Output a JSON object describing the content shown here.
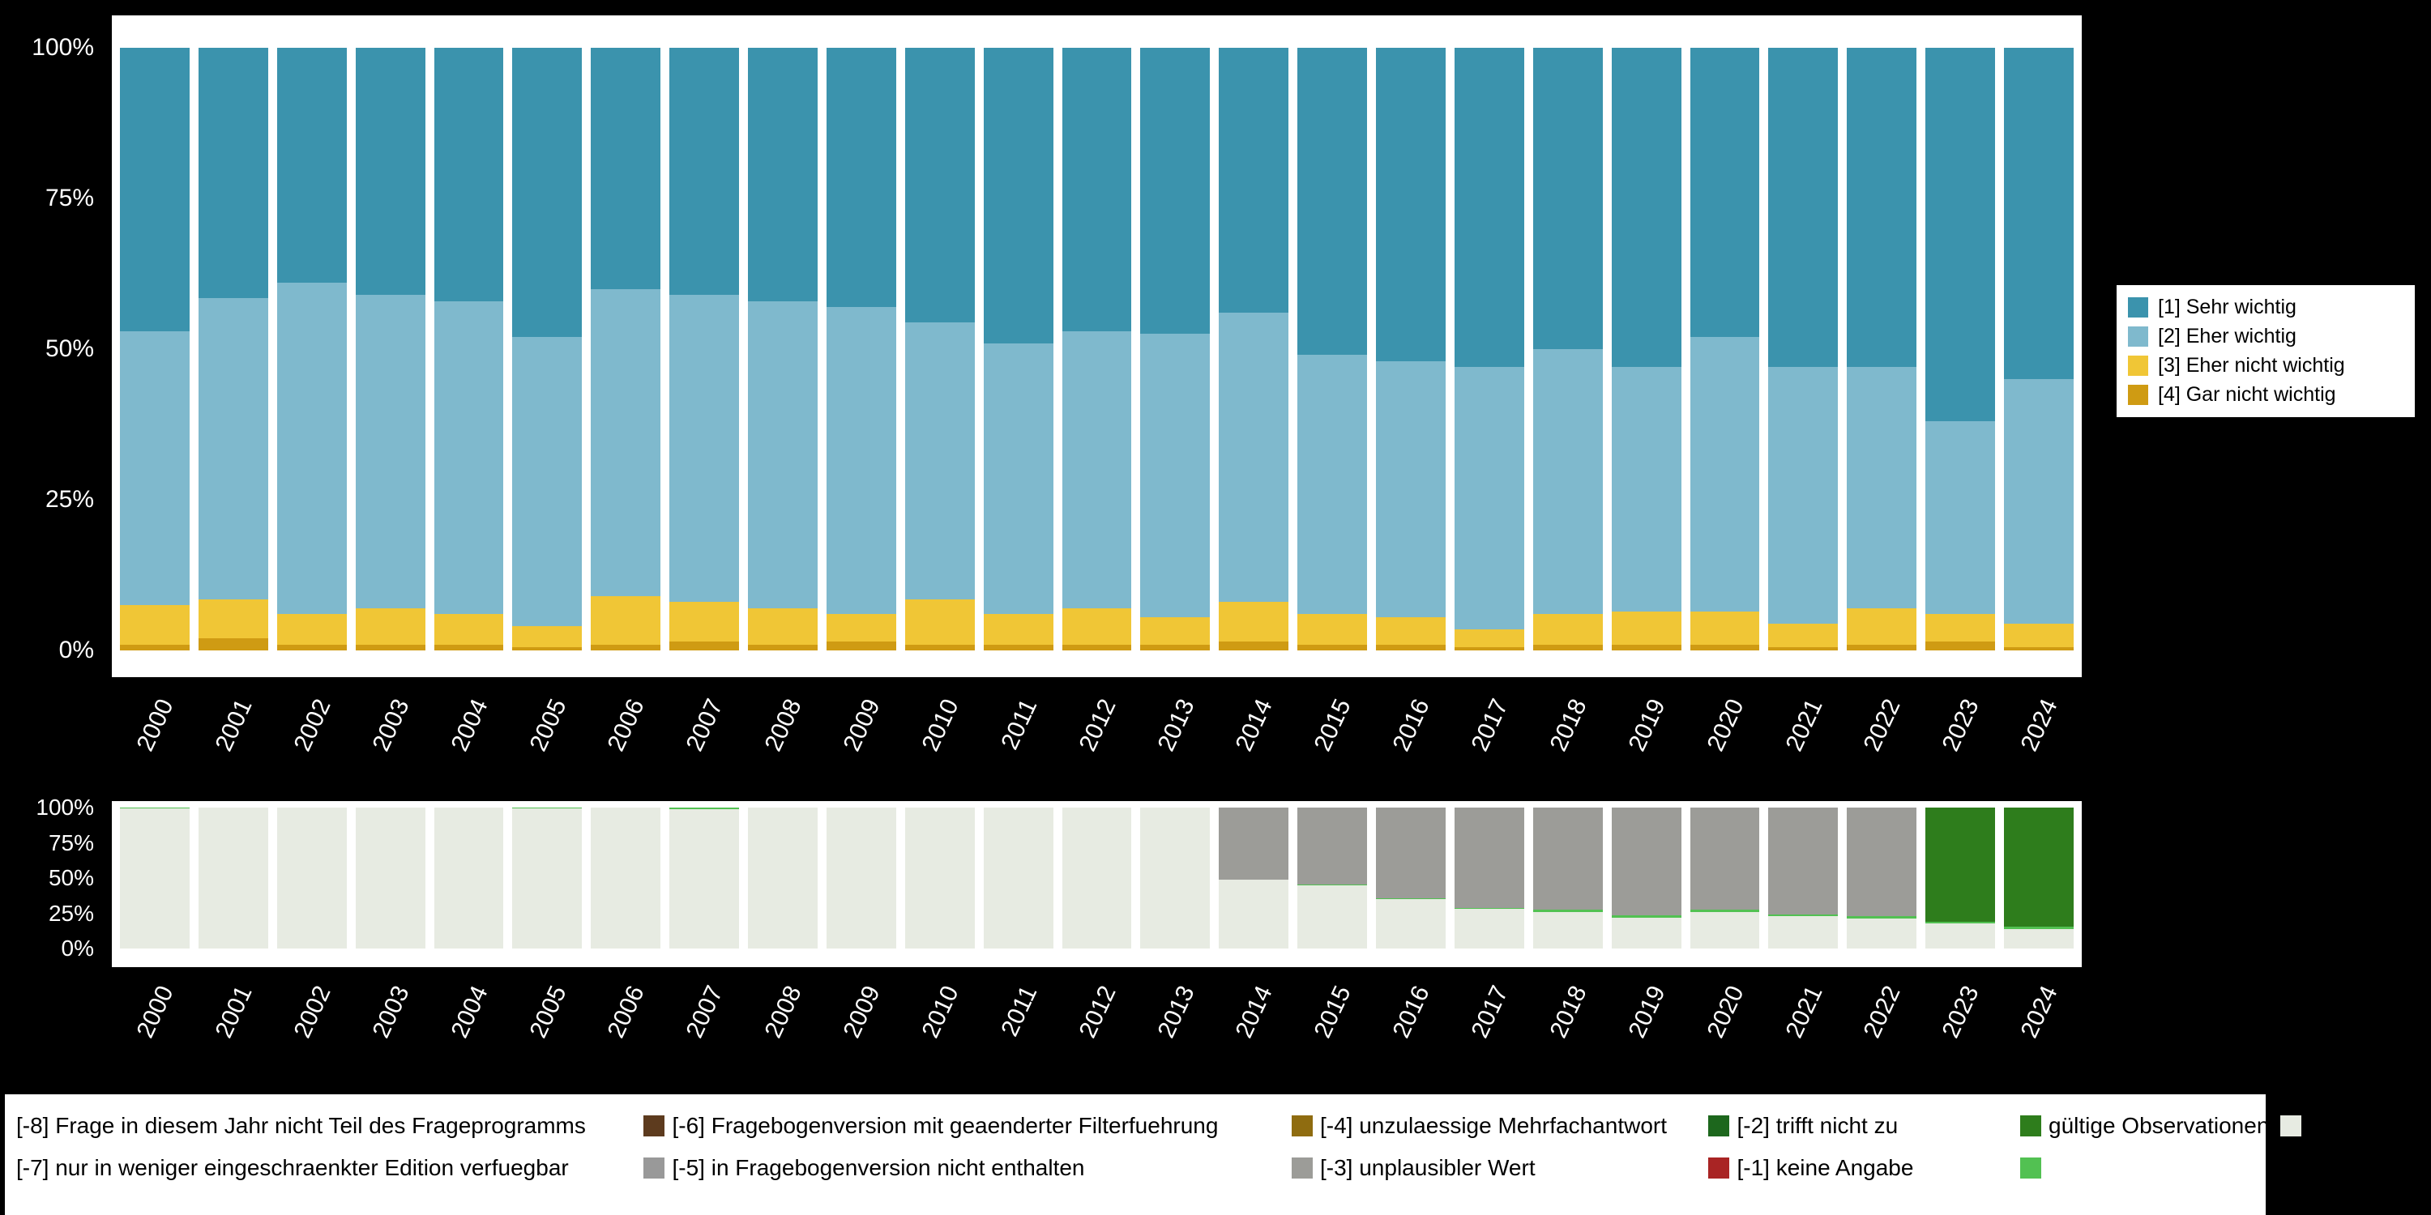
{
  "background_color": "#000000",
  "axis_text_color": "#ffffff",
  "chart_data": [
    {
      "type": "bar",
      "stacked": true,
      "unit": "percent",
      "title": "",
      "xlabel": "",
      "ylabel": "",
      "ylim": [
        0,
        100
      ],
      "grid": false,
      "legend_position": "right",
      "yticks": [
        "0%",
        "25%",
        "50%",
        "75%",
        "100%"
      ],
      "categories": [
        "2000",
        "2001",
        "2002",
        "2003",
        "2004",
        "2005",
        "2006",
        "2007",
        "2008",
        "2009",
        "2010",
        "2011",
        "2012",
        "2013",
        "2014",
        "2015",
        "2016",
        "2017",
        "2018",
        "2019",
        "2020",
        "2021",
        "2022",
        "2023",
        "2024"
      ],
      "series": [
        {
          "name": "[4] Gar nicht wichtig",
          "color": "#cf9b13",
          "values": [
            1,
            2,
            1,
            1,
            1,
            0.5,
            1,
            1.5,
            1,
            1.5,
            1,
            1,
            1,
            1,
            1.5,
            1,
            1,
            0.5,
            1,
            1,
            1,
            0.5,
            1,
            1.5,
            0.5
          ]
        },
        {
          "name": "[3] Eher nicht wichtig",
          "color": "#f0c636",
          "values": [
            6.5,
            6.5,
            5,
            6,
            5,
            3.5,
            8,
            6.5,
            6,
            4.5,
            7.5,
            5,
            6,
            4.5,
            6.5,
            5,
            4.5,
            3,
            5,
            5.5,
            5.5,
            4,
            6,
            4.5,
            4
          ]
        },
        {
          "name": "[2] Eher wichtig",
          "color": "#7fb9cd",
          "values": [
            45.5,
            50,
            55,
            52,
            52,
            48,
            51,
            51,
            51,
            51,
            46,
            45,
            46,
            47,
            48,
            43,
            42.5,
            43.5,
            44,
            40.5,
            45.5,
            42.5,
            40,
            32,
            40.5
          ]
        },
        {
          "name": "[1] Sehr wichtig",
          "color": "#3b93ad",
          "values": [
            47,
            41.5,
            39,
            41,
            42,
            48,
            40,
            41,
            42,
            43,
            45.5,
            49,
            47,
            47.5,
            44,
            51,
            52,
            53,
            50,
            53,
            48,
            53,
            53,
            62,
            55
          ]
        }
      ],
      "legend_order": [
        "[1] Sehr wichtig",
        "[2] Eher wichtig",
        "[3] Eher nicht wichtig",
        "[4] Gar nicht wichtig"
      ]
    },
    {
      "type": "bar",
      "stacked": true,
      "unit": "percent",
      "title": "",
      "xlabel": "",
      "ylabel": "",
      "ylim": [
        0,
        100
      ],
      "grid": false,
      "yticks": [
        "0%",
        "25%",
        "50%",
        "75%",
        "100%"
      ],
      "categories": [
        "2000",
        "2001",
        "2002",
        "2003",
        "2004",
        "2005",
        "2006",
        "2007",
        "2008",
        "2009",
        "2010",
        "2011",
        "2012",
        "2013",
        "2014",
        "2015",
        "2016",
        "2017",
        "2018",
        "2019",
        "2020",
        "2021",
        "2022",
        "2023",
        "2024"
      ],
      "series": [
        {
          "name": "gültige Observationen",
          "color": "#e7ebe2",
          "values": [
            99.5,
            100,
            100,
            100,
            100,
            99.5,
            100,
            99,
            100,
            100,
            100,
            100,
            100,
            100,
            49,
            45,
            35,
            28,
            26,
            22,
            26,
            23,
            21,
            18,
            14
          ]
        },
        {
          "name": "[-1] keine Angabe",
          "color": "#52c152",
          "values": [
            0.5,
            0,
            0,
            0,
            0,
            0.5,
            0,
            1,
            0,
            0,
            0,
            0,
            0,
            0,
            0,
            0.5,
            0.5,
            1,
            1.5,
            1.5,
            1.5,
            1,
            2,
            1,
            1.5
          ]
        },
        {
          "name": "[-5] in Fragebogenversion nicht enthalten",
          "color": "#9c9c98",
          "values": [
            0,
            0,
            0,
            0,
            0,
            0,
            0,
            0,
            0,
            0,
            0,
            0,
            0,
            0,
            51,
            54.5,
            64.5,
            71,
            72.5,
            76.5,
            72.5,
            76,
            77,
            0,
            0
          ]
        },
        {
          "name": "[-2] trifft nicht zu",
          "color": "#2e7d1c",
          "values": [
            0,
            0,
            0,
            0,
            0,
            0,
            0,
            0,
            0,
            0,
            0,
            0,
            0,
            0,
            0,
            0,
            0,
            0,
            0,
            0,
            0,
            0,
            0,
            81,
            84.5
          ]
        }
      ]
    }
  ],
  "missing_legend": {
    "columns": [
      {
        "rows": [
          {
            "label": "[-8] Frage in diesem Jahr nicht Teil des Frageprogramms",
            "color": "#5d3b1e"
          },
          {
            "label": "[-7] nur in weniger eingeschraenkter Edition verfuegbar",
            "color": "#999999"
          }
        ]
      },
      {
        "rows": [
          {
            "label": "[-6] Fragebogenversion mit geaenderter Filterfuehrung",
            "color": "#8f6c10"
          },
          {
            "label": "[-5] in Fragebogenversion nicht enthalten",
            "color": "#9c9c98"
          }
        ]
      },
      {
        "rows": [
          {
            "label": "[-4] unzulaessige Mehrfachantwort",
            "color": "#1d671d"
          },
          {
            "label": "[-3] unplausibler Wert",
            "color": "#a92424"
          }
        ]
      },
      {
        "rows": [
          {
            "label": "[-2] trifft nicht zu",
            "color": "#2e7d1c"
          },
          {
            "label": "[-1] keine Angabe",
            "color": "#52c152"
          }
        ]
      },
      {
        "rows": [
          {
            "label": "gültige Observationen",
            "color": "#e7ebe2"
          }
        ]
      }
    ]
  }
}
